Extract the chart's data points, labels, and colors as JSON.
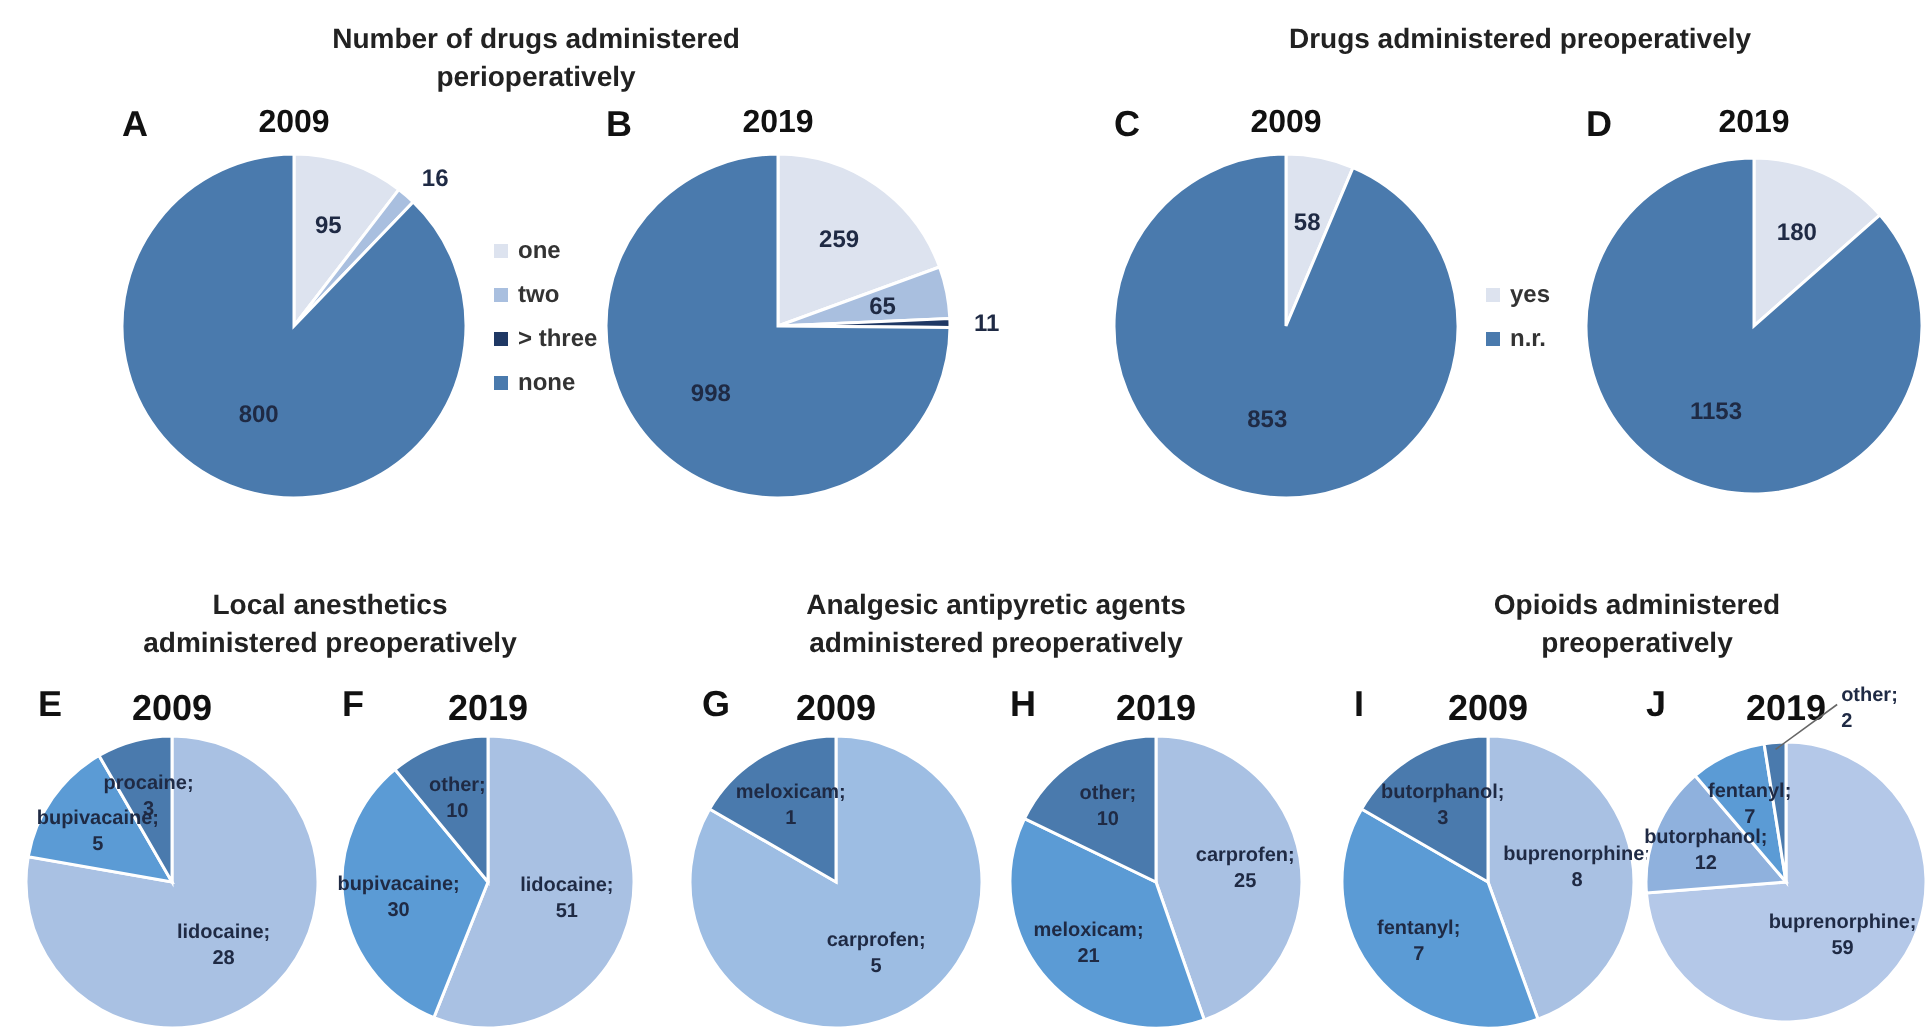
{
  "chart_data": [
    {
      "type": "pie",
      "title": "2009",
      "annotations": [
        "Number of drugs administered perioperatively",
        "A"
      ],
      "categories": [
        "one",
        "two",
        "> three",
        "none"
      ],
      "values": [
        95,
        16,
        0,
        800
      ],
      "value_labels": [
        "95",
        "16",
        null,
        "800"
      ],
      "colors": [
        "#dde3ef",
        "#a9bfdf",
        "#1f3864",
        "#4a7aad"
      ],
      "legend": "right"
    },
    {
      "type": "pie",
      "title": "2019",
      "annotations": [
        "B"
      ],
      "values": [
        259,
        65,
        11,
        998
      ],
      "value_labels": [
        "259",
        "65",
        "11",
        "998"
      ],
      "colors": [
        "#dde3ef",
        "#a9bfdf",
        "#1f3864",
        "#4a7aad"
      ]
    },
    {
      "type": "pie",
      "title": "2009",
      "annotations": [
        "Drugs administered preoperatively",
        "C"
      ],
      "categories": [
        "yes",
        "n.r."
      ],
      "values": [
        58,
        853
      ],
      "value_labels": [
        "58",
        "853"
      ],
      "colors": [
        "#dde3ef",
        "#4a7aad"
      ],
      "legend": "right"
    },
    {
      "type": "pie",
      "title": "2019",
      "annotations": [
        "D"
      ],
      "values": [
        180,
        1153
      ],
      "value_labels": [
        "180",
        "1153"
      ],
      "colors": [
        "#dde3ef",
        "#4a7aad"
      ]
    },
    {
      "type": "pie",
      "title": "2009",
      "annotations": [
        "Local anesthetics administered preoperatively",
        "E"
      ],
      "values": [
        28,
        5,
        3
      ],
      "value_labels": [
        "lidocaine; 28",
        "bupivacaine; 5",
        "procaine; 3"
      ],
      "colors": [
        "#a9c1e3",
        "#5b9bd5",
        "#4a7aad"
      ]
    },
    {
      "type": "pie",
      "title": "2019",
      "annotations": [
        "F"
      ],
      "values": [
        51,
        30,
        10
      ],
      "value_labels": [
        "lidocaine; 51",
        "bupivacaine; 30",
        "other; 10"
      ],
      "colors": [
        "#a9c1e3",
        "#5b9bd5",
        "#4a7aad"
      ]
    },
    {
      "type": "pie",
      "title": "2009",
      "annotations": [
        "Analgesic antipyretic agents administered preoperatively",
        "G"
      ],
      "values": [
        5,
        1
      ],
      "value_labels": [
        "carprofen; 5",
        "meloxicam; 1"
      ],
      "colors": [
        "#9dbde3",
        "#4a7aad"
      ]
    },
    {
      "type": "pie",
      "title": "2019",
      "annotations": [
        "H"
      ],
      "values": [
        25,
        21,
        10
      ],
      "value_labels": [
        "carprofen; 25",
        "meloxicam; 21",
        "other; 10"
      ],
      "colors": [
        "#a9c1e3",
        "#5b9bd5",
        "#4a7aad"
      ]
    },
    {
      "type": "pie",
      "title": "2009",
      "annotations": [
        "Opioids administered preoperatively",
        "I"
      ],
      "values": [
        8,
        7,
        3
      ],
      "value_labels": [
        "buprenorphine; 8",
        "fentanyl; 7",
        "butorphanol; 3"
      ],
      "colors": [
        "#a9c1e3",
        "#5b9bd5",
        "#4a7aad"
      ]
    },
    {
      "type": "pie",
      "title": "2019",
      "annotations": [
        "J"
      ],
      "values": [
        59,
        12,
        7,
        2
      ],
      "value_labels": [
        "buprenorphine; 59",
        "butorphanol; 12",
        "fentanyl; 7",
        "other; 2"
      ],
      "colors": [
        "#b4c8e8",
        "#8fb1dd",
        "#5b9bd5",
        "#4a7aad"
      ]
    }
  ]
}
